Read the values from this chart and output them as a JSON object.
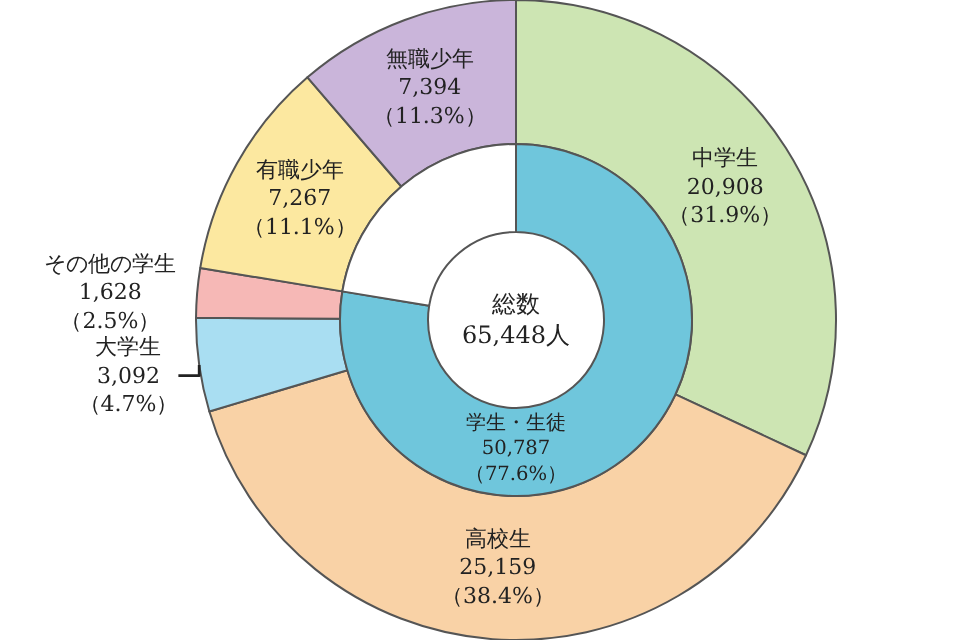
{
  "chart_data": [
    {
      "type": "donut",
      "categories": [
        "中学生",
        "高校生",
        "大学生",
        "その他の学生",
        "有職少年",
        "無職少年"
      ],
      "values": [
        20908,
        25159,
        3092,
        1628,
        7267,
        7394
      ],
      "value_labels": [
        "20,908\n（31.9%）",
        "25,159\n（38.4%）",
        "3,092\n（4.7%）",
        "1,628\n（2.5%）",
        "7,267\n（11.1%）",
        "7,394\n（11.3%）"
      ],
      "colors": [
        "#cde5b3",
        "#f9d2a6",
        "#a9def2",
        "#f6b8b6",
        "#fce8a0",
        "#cab5da"
      ]
    },
    {
      "type": "donut",
      "categories": [
        "学生・生徒",
        null
      ],
      "values": [
        50787,
        14661
      ],
      "value_labels": [
        "50,787\n（77.6%）",
        null
      ],
      "colors": [
        "#6fc6dc",
        "#ffffff"
      ],
      "annotations": [
        "総数\n65,448人"
      ]
    }
  ]
}
